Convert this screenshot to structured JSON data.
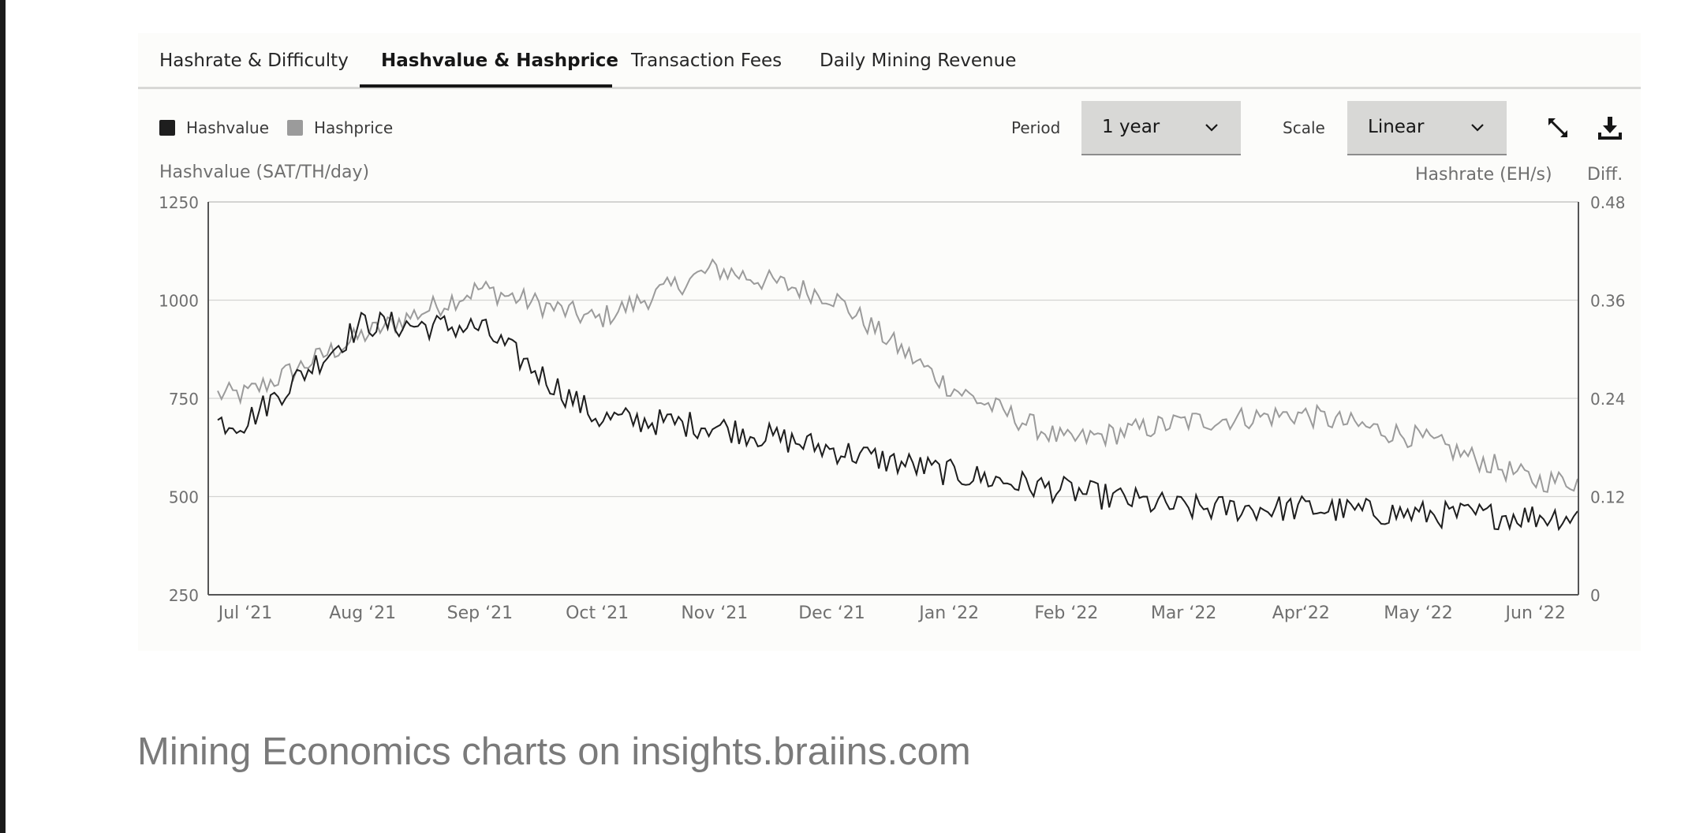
{
  "tabs": [
    {
      "label": "Hashrate & Difficulty",
      "active": false
    },
    {
      "label": "Hashvalue & Hashprice",
      "active": true
    },
    {
      "label": "Transaction Fees",
      "active": false
    },
    {
      "label": "Daily Mining Revenue",
      "active": false
    }
  ],
  "legend": [
    {
      "label": "Hashvalue",
      "color": "#1e1e1e"
    },
    {
      "label": "Hashprice",
      "color": "#9b9b9b"
    }
  ],
  "controls": {
    "period_label": "Period",
    "period_value": "1 year",
    "scale_label": "Scale",
    "scale_value": "Linear",
    "expand_icon": "expand-icon",
    "download_icon": "download-icon"
  },
  "axes": {
    "left_title": "Hashvalue (SAT/TH/day)",
    "right_title": "Hashrate (EH/s)",
    "right_title2": "Diff."
  },
  "chart_data": {
    "type": "line",
    "title": "",
    "x_tick_labels": [
      "Jul ‘21",
      "Aug ‘21",
      "Sep ‘21",
      "Oct ‘21",
      "Nov ‘21",
      "Dec ‘21",
      "Jan ‘22",
      "Feb ‘22",
      "Mar ‘22",
      "Apr‘22",
      "May ‘22",
      "Jun ‘22"
    ],
    "y_left": {
      "ticks": [
        "1250",
        "1000",
        "750",
        "500",
        "250"
      ],
      "range": [
        250,
        1250
      ]
    },
    "y_right": {
      "ticks": [
        "0.48",
        "0.36",
        "0.24",
        "0.12",
        "0"
      ],
      "range": [
        0,
        0.48
      ]
    },
    "grid": true,
    "series": [
      {
        "name": "Hashvalue",
        "color": "#1e1e1e",
        "axis": "left",
        "monthly_values": [
          690,
          940,
          930,
          700,
          680,
          620,
          560,
          515,
          470,
          470,
          455,
          450
        ]
      },
      {
        "name": "Hashprice",
        "color": "#9b9b9b",
        "axis": "left",
        "monthly_values": [
          760,
          910,
          1030,
          950,
          1080,
          1010,
          780,
          640,
          690,
          710,
          650,
          540
        ]
      }
    ]
  },
  "caption": "Mining Economics charts on insights.braiins.com"
}
